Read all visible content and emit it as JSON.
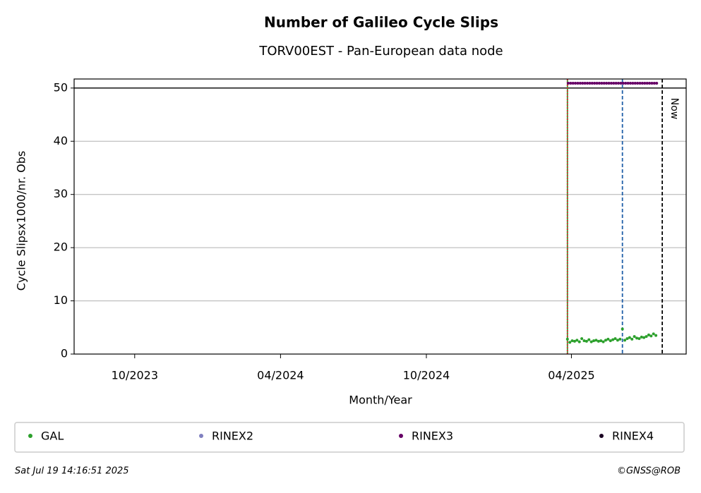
{
  "chart_data": {
    "type": "scatter",
    "title": "Number of Galileo Cycle Slips",
    "subtitle": "TORV00EST - Pan-European data node",
    "x_label": "Month/Year",
    "y_label": "Cycle Slipsx1000/nr. Obs",
    "xlim": [
      "2023-07-17",
      "2025-08-23"
    ],
    "xticks": [
      {
        "value": "2023-10-01",
        "label": "10/2023"
      },
      {
        "value": "2024-04-01",
        "label": "04/2024"
      },
      {
        "value": "2024-10-01",
        "label": "10/2024"
      },
      {
        "value": "2025-04-01",
        "label": "04/2025"
      }
    ],
    "ylim": [
      0,
      51.7
    ],
    "yticks": [
      0,
      10,
      20,
      30,
      40,
      50
    ],
    "grid": true,
    "hlines": [
      {
        "y": 50,
        "color": "#000000"
      }
    ],
    "vlines": [
      {
        "x": "2025-03-27",
        "color": "#2ca02c",
        "style": "solid"
      },
      {
        "x": "2025-03-27",
        "color": "#d62728",
        "style": "dotted"
      },
      {
        "x": "2025-06-04",
        "color": "#1f5fa8",
        "style": "dashed"
      },
      {
        "x": "2025-07-24",
        "color": "#000000",
        "style": "dashed",
        "label": "Now"
      }
    ],
    "legend": "bottom",
    "series": [
      {
        "name": "GAL",
        "color": "#2ca02c",
        "x": [
          "2025-03-27",
          "2025-03-30",
          "2025-04-02",
          "2025-04-05",
          "2025-04-08",
          "2025-04-11",
          "2025-04-14",
          "2025-04-17",
          "2025-04-20",
          "2025-04-23",
          "2025-04-26",
          "2025-04-29",
          "2025-05-02",
          "2025-05-05",
          "2025-05-08",
          "2025-05-11",
          "2025-05-14",
          "2025-05-17",
          "2025-05-20",
          "2025-05-23",
          "2025-05-26",
          "2025-05-29",
          "2025-06-01",
          "2025-06-04",
          "2025-06-07",
          "2025-06-10",
          "2025-06-13",
          "2025-06-16",
          "2025-06-19",
          "2025-06-22",
          "2025-06-25",
          "2025-06-28",
          "2025-07-01",
          "2025-07-04",
          "2025-07-07",
          "2025-07-10",
          "2025-07-13",
          "2025-07-16"
        ],
        "values": [
          2.8,
          2.2,
          2.5,
          2.4,
          2.6,
          2.3,
          2.9,
          2.5,
          2.4,
          2.7,
          2.3,
          2.5,
          2.6,
          2.4,
          2.5,
          2.3,
          2.6,
          2.8,
          2.5,
          2.7,
          2.9,
          2.6,
          2.8,
          4.7,
          2.6,
          2.9,
          3.1,
          2.8,
          3.3,
          3.0,
          2.9,
          3.2,
          3.1,
          3.3,
          3.6,
          3.4,
          3.8,
          3.5
        ]
      },
      {
        "name": "RINEX2",
        "color": "#8080c0",
        "x": [],
        "values": []
      },
      {
        "name": "RINEX3",
        "color": "#660066",
        "x": [
          "2025-03-28",
          "2025-03-31",
          "2025-04-03",
          "2025-04-06",
          "2025-04-09",
          "2025-04-12",
          "2025-04-15",
          "2025-04-18",
          "2025-04-21",
          "2025-04-24",
          "2025-04-27",
          "2025-04-30",
          "2025-05-03",
          "2025-05-06",
          "2025-05-09",
          "2025-05-12",
          "2025-05-15",
          "2025-05-18",
          "2025-05-21",
          "2025-05-24",
          "2025-05-27",
          "2025-05-30",
          "2025-06-02",
          "2025-06-05",
          "2025-06-08",
          "2025-06-11",
          "2025-06-14",
          "2025-06-17",
          "2025-06-20",
          "2025-06-23",
          "2025-06-26",
          "2025-06-29",
          "2025-07-02",
          "2025-07-05",
          "2025-07-08",
          "2025-07-11",
          "2025-07-14",
          "2025-07-17"
        ],
        "values": [
          50.9,
          50.9,
          50.9,
          50.9,
          50.9,
          50.9,
          50.9,
          50.9,
          50.9,
          50.9,
          50.9,
          50.9,
          50.9,
          50.9,
          50.9,
          50.9,
          50.9,
          50.9,
          50.9,
          50.9,
          50.9,
          50.9,
          50.9,
          50.9,
          50.9,
          50.9,
          50.9,
          50.9,
          50.9,
          50.9,
          50.9,
          50.9,
          50.9,
          50.9,
          50.9,
          50.9,
          50.9,
          50.9
        ]
      },
      {
        "name": "RINEX4",
        "color": "#1a0022",
        "x": [],
        "values": []
      }
    ],
    "footer_left": "Sat Jul 19 14:16:51 2025",
    "footer_right": "©GNSS@ROB"
  }
}
